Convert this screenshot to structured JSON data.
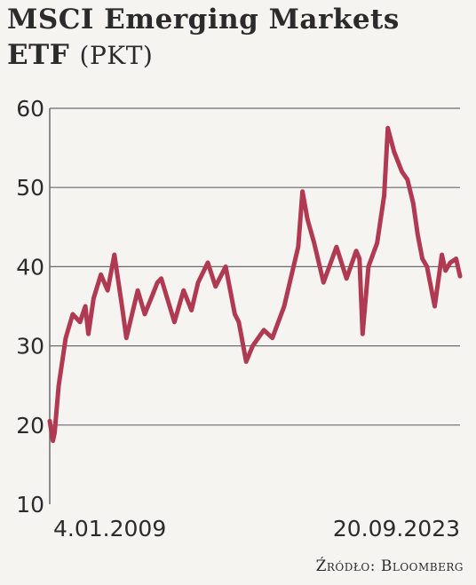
{
  "title_line1": "MSCI Emerging Markets",
  "title_line2": "ETF",
  "unit": "(PKT)",
  "source": "Źródło: Bloomberg",
  "colors": {
    "line": "#b03a52",
    "grid": "#6a6a6a",
    "text": "#2b2b2b",
    "background": "#f6f4f1"
  },
  "chart_data": {
    "type": "line",
    "title": "MSCI Emerging Markets ETF",
    "ylabel": "(PKT)",
    "ylim": [
      10,
      60
    ],
    "yticks": [
      10,
      20,
      30,
      40,
      50,
      60
    ],
    "xlim": [
      "2009-01-04",
      "2023-09-20"
    ],
    "xtick_labels": [
      "4.01.2009",
      "20.09.2023"
    ],
    "grid": true,
    "series": [
      {
        "x": [
          "2009-01-04",
          "2009-02-15",
          "2009-03-09",
          "2009-05-01",
          "2009-08-01",
          "2009-11-01",
          "2010-02-05",
          "2010-04-15",
          "2010-05-25",
          "2010-08-01",
          "2010-11-05",
          "2011-02-01",
          "2011-04-30",
          "2011-08-08",
          "2011-10-04",
          "2012-03-01",
          "2012-06-01",
          "2012-09-14",
          "2012-11-15",
          "2013-01-03",
          "2013-06-24",
          "2013-10-22",
          "2014-02-03",
          "2014-05-01",
          "2014-09-05",
          "2014-12-15",
          "2015-04-27",
          "2015-08-24",
          "2015-10-15",
          "2016-01-20",
          "2016-04-15",
          "2016-09-07",
          "2016-12-28",
          "2017-06-01",
          "2017-12-01",
          "2018-01-26",
          "2018-04-01",
          "2018-06-28",
          "2018-10-29",
          "2019-04-17",
          "2019-08-26",
          "2019-12-31",
          "2020-02-12",
          "2020-03-23",
          "2020-06-08",
          "2020-09-30",
          "2020-12-31",
          "2021-02-17",
          "2021-05-10",
          "2021-08-20",
          "2021-11-01",
          "2022-01-15",
          "2022-03-15",
          "2022-05-15",
          "2022-07-15",
          "2022-10-24",
          "2023-01-26",
          "2023-03-15",
          "2023-05-15",
          "2023-07-31",
          "2023-09-20"
        ],
        "values": [
          20.5,
          18.0,
          19.0,
          25.0,
          31.0,
          34.0,
          33.0,
          35.0,
          31.5,
          36.0,
          39.0,
          37.0,
          41.5,
          35.0,
          31.0,
          37.0,
          34.0,
          36.5,
          38.0,
          38.5,
          33.0,
          37.0,
          34.5,
          38.0,
          40.5,
          37.5,
          40.0,
          34.0,
          33.0,
          28.0,
          30.0,
          32.0,
          31.0,
          35.0,
          42.5,
          49.5,
          46.0,
          43.0,
          38.0,
          42.5,
          38.5,
          42.0,
          41.0,
          31.5,
          40.0,
          43.0,
          49.0,
          57.5,
          54.5,
          52.0,
          51.0,
          48.0,
          44.0,
          41.0,
          40.0,
          35.0,
          41.5,
          39.5,
          40.5,
          41.0,
          38.8
        ]
      }
    ]
  }
}
